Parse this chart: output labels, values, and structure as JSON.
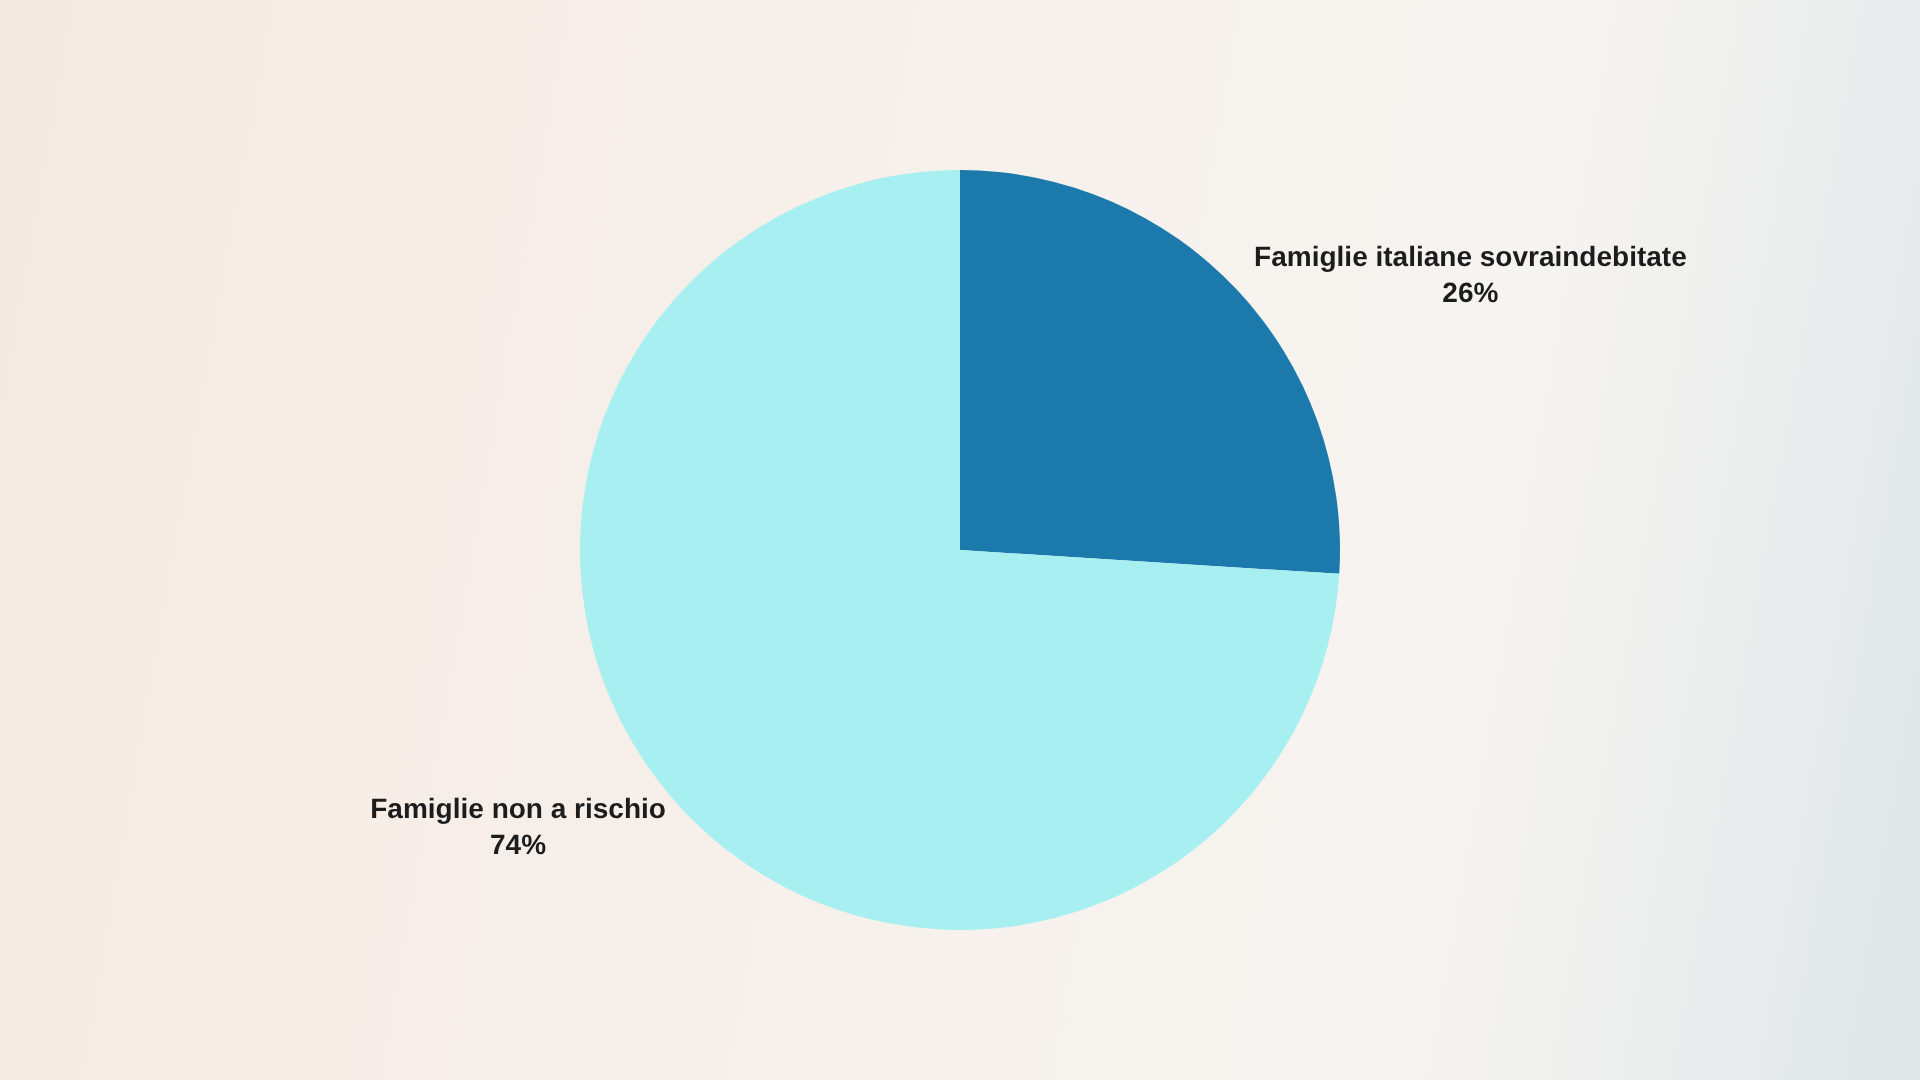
{
  "chart_data": {
    "type": "pie",
    "categories": [
      "Famiglie italiane sovraindebitate",
      "Famiglie non a rischio"
    ],
    "values": [
      26,
      74
    ],
    "value_labels": [
      "26%",
      "74%"
    ],
    "colors": [
      "#1b7aab",
      "#a8eff2"
    ],
    "legend": false
  }
}
